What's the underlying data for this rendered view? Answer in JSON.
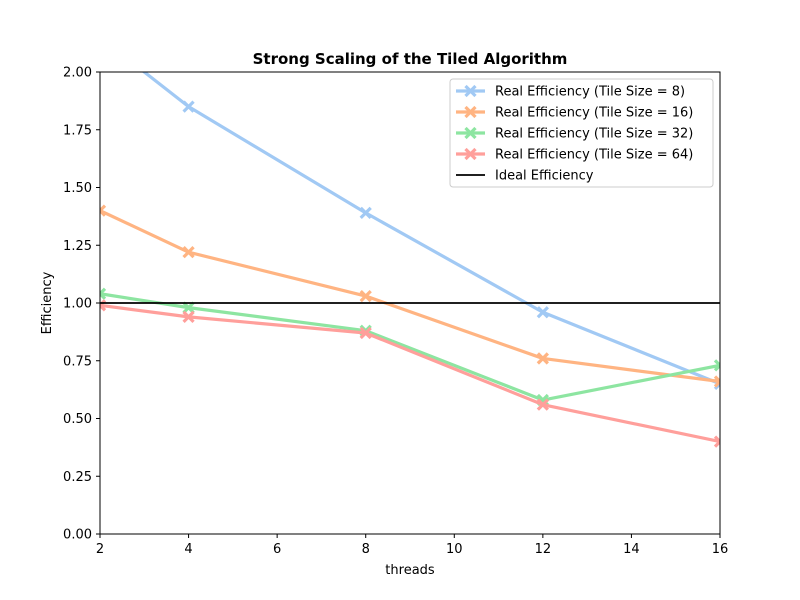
{
  "chart_data": {
    "type": "line",
    "title": "Strong Scaling of the Tiled Algorithm",
    "xlabel": "threads",
    "ylabel": "Efficiency",
    "xlim": [
      2,
      16
    ],
    "ylim": [
      0,
      2.0
    ],
    "xticks": [
      2,
      4,
      6,
      8,
      10,
      12,
      14,
      16
    ],
    "yticks": [
      0.0,
      0.25,
      0.5,
      0.75,
      1.0,
      1.25,
      1.5,
      1.75,
      2.0
    ],
    "ytick_labels": [
      "0.00",
      "0.25",
      "0.50",
      "0.75",
      "1.00",
      "1.25",
      "1.50",
      "1.75",
      "2.00"
    ],
    "x": [
      2,
      4,
      8,
      12,
      16
    ],
    "series": [
      {
        "name": "Real Efficiency (Tile Size = 8)",
        "color": "#a1c9f4",
        "marker": "x",
        "values": [
          2.15,
          1.85,
          1.39,
          0.96,
          0.65
        ]
      },
      {
        "name": "Real Efficiency (Tile Size = 16)",
        "color": "#ffb482",
        "marker": "x",
        "values": [
          1.4,
          1.22,
          1.03,
          0.76,
          0.66
        ]
      },
      {
        "name": "Real Efficiency (Tile Size = 32)",
        "color": "#8de5a1",
        "marker": "x",
        "values": [
          1.04,
          0.98,
          0.88,
          0.58,
          0.73
        ]
      },
      {
        "name": "Real Efficiency (Tile Size = 64)",
        "color": "#ff9f9b",
        "marker": "x",
        "values": [
          0.99,
          0.94,
          0.87,
          0.56,
          0.4
        ]
      }
    ],
    "reference_line": {
      "name": "Ideal Efficiency",
      "value": 1.0,
      "color": "#000000"
    },
    "grid": false,
    "legend_position": "top-right"
  }
}
